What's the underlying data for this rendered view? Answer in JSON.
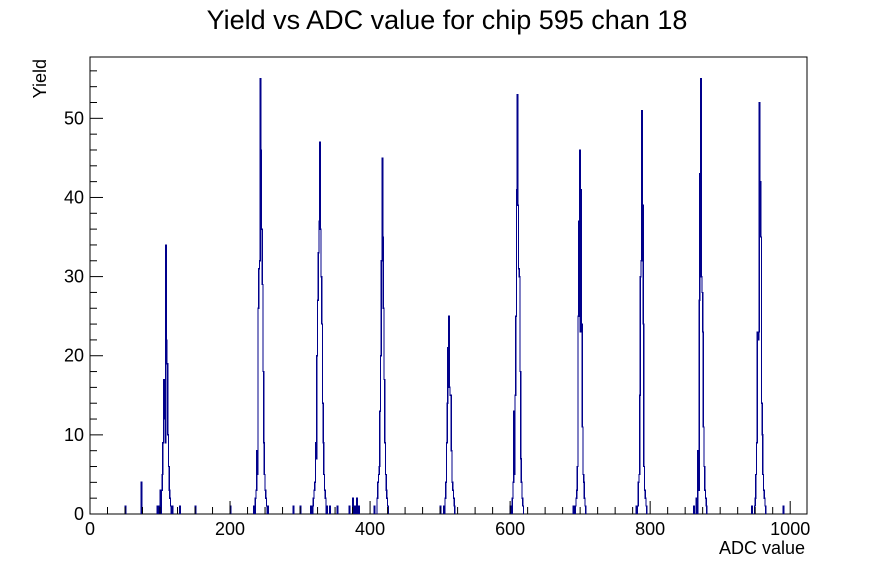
{
  "chart_data": {
    "type": "bar",
    "title": "Yield vs ADC value for chip 595 chan 18",
    "xlabel": "ADC value",
    "ylabel": "Yield",
    "xlim": [
      0,
      1024
    ],
    "ylim": [
      0,
      57.75
    ],
    "xticks": [
      0,
      200,
      400,
      600,
      800,
      1000
    ],
    "yticks": [
      0,
      10,
      20,
      30,
      40,
      50
    ],
    "line_color": "#00008b",
    "grid": false,
    "legend": "none",
    "bin_width": 1,
    "bins": [
      [
        50,
        1
      ],
      [
        73,
        4
      ],
      [
        96,
        1
      ],
      [
        99,
        1
      ],
      [
        100,
        3
      ],
      [
        102,
        3
      ],
      [
        103,
        5
      ],
      [
        104,
        9
      ],
      [
        105,
        17
      ],
      [
        106,
        12
      ],
      [
        107,
        9
      ],
      [
        108,
        34
      ],
      [
        109,
        22
      ],
      [
        110,
        19
      ],
      [
        111,
        10
      ],
      [
        112,
        6
      ],
      [
        113,
        3
      ],
      [
        114,
        2
      ],
      [
        115,
        1
      ],
      [
        117,
        1
      ],
      [
        128,
        1
      ],
      [
        150,
        1
      ],
      [
        200,
        1
      ],
      [
        234,
        1
      ],
      [
        236,
        2
      ],
      [
        237,
        3
      ],
      [
        238,
        8
      ],
      [
        239,
        5
      ],
      [
        240,
        26
      ],
      [
        241,
        31
      ],
      [
        242,
        32
      ],
      [
        243,
        55
      ],
      [
        244,
        46
      ],
      [
        245,
        36
      ],
      [
        246,
        29
      ],
      [
        247,
        18
      ],
      [
        248,
        9
      ],
      [
        249,
        5
      ],
      [
        250,
        3
      ],
      [
        251,
        2
      ],
      [
        252,
        1
      ],
      [
        254,
        1
      ],
      [
        290,
        1
      ],
      [
        300,
        1
      ],
      [
        315,
        1
      ],
      [
        318,
        1
      ],
      [
        319,
        2
      ],
      [
        320,
        3
      ],
      [
        321,
        4
      ],
      [
        322,
        9
      ],
      [
        323,
        7
      ],
      [
        324,
        20
      ],
      [
        325,
        27
      ],
      [
        326,
        33
      ],
      [
        327,
        37
      ],
      [
        328,
        47
      ],
      [
        329,
        36
      ],
      [
        330,
        30
      ],
      [
        331,
        24
      ],
      [
        332,
        14
      ],
      [
        333,
        9
      ],
      [
        334,
        5
      ],
      [
        335,
        3
      ],
      [
        336,
        2
      ],
      [
        338,
        1
      ],
      [
        342,
        1
      ],
      [
        353,
        1
      ],
      [
        370,
        1
      ],
      [
        375,
        2
      ],
      [
        378,
        1
      ],
      [
        381,
        2
      ],
      [
        384,
        1
      ],
      [
        406,
        1
      ],
      [
        410,
        2
      ],
      [
        411,
        4
      ],
      [
        412,
        5
      ],
      [
        413,
        6
      ],
      [
        414,
        13
      ],
      [
        415,
        20
      ],
      [
        416,
        32
      ],
      [
        417,
        45
      ],
      [
        418,
        35
      ],
      [
        419,
        26
      ],
      [
        420,
        17
      ],
      [
        421,
        9
      ],
      [
        422,
        5
      ],
      [
        423,
        3
      ],
      [
        424,
        2
      ],
      [
        425,
        1
      ],
      [
        500,
        1
      ],
      [
        505,
        1
      ],
      [
        507,
        2
      ],
      [
        508,
        4
      ],
      [
        509,
        9
      ],
      [
        510,
        14
      ],
      [
        511,
        21
      ],
      [
        512,
        25
      ],
      [
        513,
        16
      ],
      [
        514,
        15
      ],
      [
        515,
        15
      ],
      [
        516,
        8
      ],
      [
        517,
        4
      ],
      [
        518,
        3
      ],
      [
        519,
        2
      ],
      [
        520,
        1
      ],
      [
        600,
        1
      ],
      [
        603,
        2
      ],
      [
        604,
        4
      ],
      [
        605,
        13
      ],
      [
        606,
        5
      ],
      [
        607,
        15
      ],
      [
        608,
        25
      ],
      [
        609,
        41
      ],
      [
        610,
        53
      ],
      [
        611,
        39
      ],
      [
        612,
        31
      ],
      [
        613,
        30
      ],
      [
        614,
        18
      ],
      [
        615,
        7
      ],
      [
        616,
        4
      ],
      [
        617,
        2
      ],
      [
        618,
        1
      ],
      [
        690,
        1
      ],
      [
        693,
        1
      ],
      [
        694,
        2
      ],
      [
        695,
        3
      ],
      [
        696,
        6
      ],
      [
        697,
        25
      ],
      [
        698,
        37
      ],
      [
        699,
        46
      ],
      [
        700,
        23
      ],
      [
        701,
        41
      ],
      [
        702,
        24
      ],
      [
        703,
        11
      ],
      [
        704,
        5
      ],
      [
        705,
        4
      ],
      [
        706,
        2
      ],
      [
        707,
        1
      ],
      [
        780,
        1
      ],
      [
        782,
        1
      ],
      [
        783,
        4
      ],
      [
        784,
        5
      ],
      [
        785,
        15
      ],
      [
        786,
        30
      ],
      [
        787,
        32
      ],
      [
        788,
        51
      ],
      [
        789,
        39
      ],
      [
        790,
        24
      ],
      [
        791,
        6
      ],
      [
        792,
        3
      ],
      [
        793,
        2
      ],
      [
        794,
        1
      ],
      [
        862,
        1
      ],
      [
        866,
        2
      ],
      [
        868,
        8
      ],
      [
        869,
        3
      ],
      [
        870,
        27
      ],
      [
        871,
        43
      ],
      [
        872,
        55
      ],
      [
        873,
        30
      ],
      [
        874,
        28
      ],
      [
        875,
        23
      ],
      [
        876,
        11
      ],
      [
        877,
        6
      ],
      [
        878,
        3
      ],
      [
        879,
        2
      ],
      [
        880,
        1
      ],
      [
        945,
        1
      ],
      [
        949,
        1
      ],
      [
        950,
        2
      ],
      [
        951,
        5
      ],
      [
        952,
        9
      ],
      [
        953,
        23
      ],
      [
        954,
        22
      ],
      [
        955,
        23
      ],
      [
        956,
        52
      ],
      [
        957,
        42
      ],
      [
        958,
        35
      ],
      [
        959,
        14
      ],
      [
        960,
        10
      ],
      [
        961,
        5
      ],
      [
        962,
        3
      ],
      [
        963,
        2
      ],
      [
        964,
        1
      ],
      [
        990,
        1
      ]
    ]
  }
}
